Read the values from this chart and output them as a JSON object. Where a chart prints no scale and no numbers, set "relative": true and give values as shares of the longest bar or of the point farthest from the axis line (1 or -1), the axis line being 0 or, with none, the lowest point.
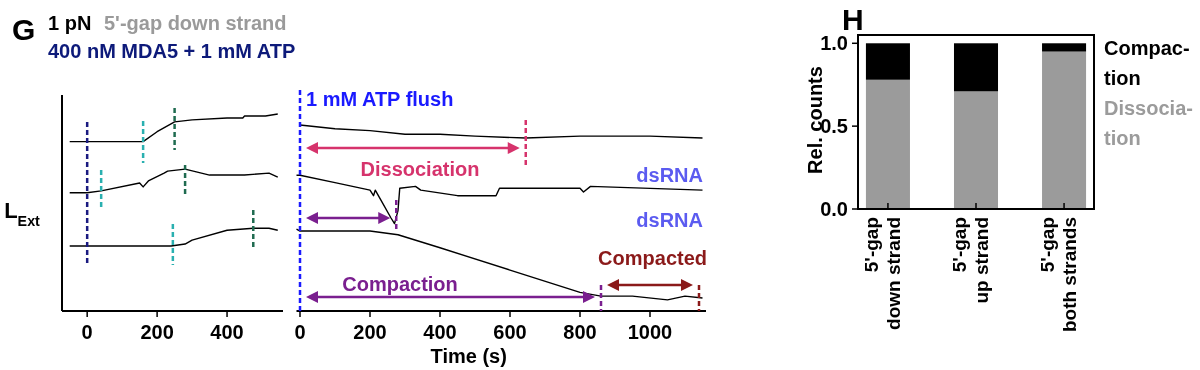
{
  "chart_data": [
    {
      "type": "line",
      "title": "G",
      "annotations": [
        "1 pN",
        "5'-gap down strand",
        "400 nM MDA5 + 1 mM ATP"
      ],
      "ylabel": "L$_{Ext}$",
      "relative": true,
      "xlim": [
        -72,
        560
      ],
      "xticks": [
        0,
        200,
        400
      ],
      "tick_labels": "x",
      "marker": "none",
      "series": [
        {
          "color": "#000000",
          "x": [
            -50,
            0,
            160,
            200,
            250,
            300,
            400,
            445,
            450,
            510,
            545
          ],
          "values": [
            0.86,
            0.86,
            0.86,
            0.91,
            0.96,
            0.97,
            0.98,
            0.98,
            0.99,
            0.99,
            1.0
          ]
        },
        {
          "color": "#000000",
          "x": [
            -50,
            0,
            40,
            150,
            160,
            175,
            220,
            230,
            280,
            350,
            450,
            520,
            545
          ],
          "values": [
            0.6,
            0.6,
            0.61,
            0.65,
            0.63,
            0.66,
            0.7,
            0.71,
            0.72,
            0.69,
            0.69,
            0.7,
            0.68
          ]
        },
        {
          "color": "#000000",
          "x": [
            -50,
            0,
            240,
            280,
            300,
            400,
            475,
            520,
            545
          ],
          "values": [
            0.33,
            0.33,
            0.33,
            0.34,
            0.36,
            0.41,
            0.42,
            0.42,
            0.41
          ]
        }
      ],
      "ref_lines": [
        {
          "axis": "x",
          "value": 0,
          "color": "#1a1a80",
          "line_style": "dashed"
        },
        {
          "axis": "x",
          "value": 160,
          "color": "#2ab0b0",
          "line_style": "dashed"
        },
        {
          "axis": "x",
          "value": 40,
          "color": "#2ab0b0",
          "line_style": "dashed"
        },
        {
          "axis": "x",
          "value": 245,
          "color": "#2ab0b0",
          "line_style": "dashed"
        },
        {
          "axis": "x",
          "value": 250,
          "color": "#1f6b50",
          "line_style": "dashed"
        },
        {
          "axis": "x",
          "value": 280,
          "color": "#1f6b50",
          "line_style": "dashed"
        },
        {
          "axis": "x",
          "value": 475,
          "color": "#1f6b50",
          "line_style": "dashed"
        }
      ]
    },
    {
      "type": "line",
      "xlabel": "Time (s)",
      "annotations": [
        "Dissociation",
        "dsRNA",
        "dsRNA",
        "Compaction",
        "Compacted"
      ],
      "relative": true,
      "xlim": [
        -10,
        1160
      ],
      "xticks": [
        0,
        200,
        400,
        600,
        800,
        1000
      ],
      "tick_labels": "x",
      "marker": "none",
      "series": [
        {
          "color": "#000000",
          "x": [
            0,
            100,
            200,
            300,
            400,
            500,
            645,
            800,
            1000,
            1150
          ],
          "values": [
            1.0,
            0.98,
            0.97,
            0.95,
            0.95,
            0.94,
            0.93,
            0.94,
            0.94,
            0.93
          ]
        },
        {
          "color": "#000000",
          "x": [
            -10,
            0,
            100,
            200,
            210,
            215,
            230,
            260,
            270,
            280,
            285,
            330,
            345,
            450,
            560,
            570,
            800,
            810,
            830,
            1150
          ],
          "values": [
            0.73,
            0.73,
            0.69,
            0.65,
            0.62,
            0.65,
            0.6,
            0.5,
            0.47,
            0.54,
            0.66,
            0.67,
            0.65,
            0.62,
            0.62,
            0.66,
            0.66,
            0.64,
            0.67,
            0.65
          ]
        },
        {
          "color": "#000000",
          "x": [
            -10,
            0,
            200,
            280,
            400,
            600,
            800,
            860,
            950,
            1050,
            1100,
            1150
          ],
          "values": [
            0.44,
            0.43,
            0.43,
            0.41,
            0.34,
            0.22,
            0.1,
            0.08,
            0.08,
            0.06,
            0.08,
            0.07
          ]
        }
      ],
      "ref_lines": [
        {
          "axis": "x",
          "value": 0,
          "label": "1 mM ATP flush",
          "color": "#1a1aff",
          "line_style": "dashed"
        },
        {
          "axis": "x",
          "value": 645,
          "color": "#d6336c",
          "line_style": "dashed"
        },
        {
          "axis": "x",
          "value": 275,
          "color": "#7a1f8f",
          "line_style": "dashed"
        },
        {
          "axis": "x",
          "value": 860,
          "color": "#7a1f8f",
          "line_style": "dashed"
        },
        {
          "axis": "x",
          "value": 1140,
          "color": "#8b1a1a",
          "line_style": "dashed"
        }
      ]
    },
    {
      "type": "bar",
      "title": "H",
      "ylabel": "Rel. counts",
      "categories": [
        "5'-gap down strand",
        "5'-gap up strand",
        "5'-gap both strands"
      ],
      "stacked": true,
      "legend": "right",
      "ylim": [
        0,
        1.05
      ],
      "yticks": [
        {
          "value": 0,
          "label": "0.0"
        },
        {
          "value": 0.5,
          "label": "0.5"
        },
        {
          "value": 1,
          "label": "1.0"
        }
      ],
      "series": [
        {
          "name": "Dissocia-tion",
          "color": "#9b9b9b",
          "values": [
            0.78,
            0.71,
            0.95
          ]
        },
        {
          "name": "Compac-tion",
          "color": "#000000",
          "values": [
            0.22,
            0.29,
            0.05
          ]
        }
      ]
    }
  ]
}
